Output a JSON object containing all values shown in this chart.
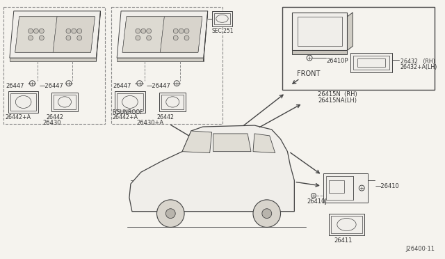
{
  "bg_color": "#f5f3ee",
  "border_color": "#888888",
  "line_color": "#444444",
  "text_color": "#333333",
  "diagram_id": "J26400·11",
  "parts": {
    "p26447": "26447",
    "p26442pA": "26442+A",
    "p26442": "26442",
    "p26430": "26430",
    "p26430pA": "26430+A",
    "p_fsunroof": "F/SUNROOF",
    "p_sec251": "SEC.251",
    "p26410P": "26410P",
    "p_front": "FRONT",
    "p26432_rh": "26432   (RH)",
    "p26432_lh": "26432+A(LH)",
    "p26415N_rh": "26415N  (RH)",
    "p26415NA_lh": "26415NA(LH)",
    "p26410J": "26410J",
    "p26410": "26410",
    "p26411": "26411"
  }
}
